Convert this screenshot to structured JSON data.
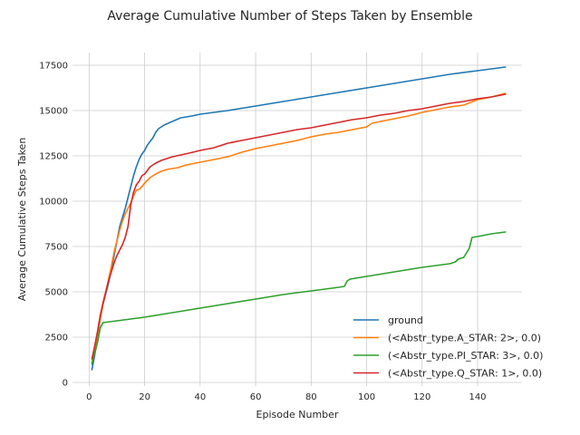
{
  "chart_data": {
    "type": "line",
    "title": "Average Cumulative Number of Steps Taken by Ensemble",
    "xlabel": "Episode Number",
    "ylabel": "Average Cumulative Steps Taken",
    "xlim": [
      -6,
      156
    ],
    "ylim": [
      -200,
      18200
    ],
    "xticks": [
      0,
      20,
      40,
      60,
      80,
      100,
      120,
      140
    ],
    "yticks": [
      0,
      2500,
      5000,
      7500,
      10000,
      12500,
      15000,
      17500
    ],
    "grid": true,
    "legend_position": "lower-right",
    "series": [
      {
        "name": "ground",
        "color": "#1f77b4",
        "points": [
          [
            1,
            700
          ],
          [
            2,
            1500
          ],
          [
            3,
            2500
          ],
          [
            4,
            3500
          ],
          [
            5,
            4300
          ],
          [
            6,
            4900
          ],
          [
            7,
            5500
          ],
          [
            8,
            6200
          ],
          [
            9,
            7000
          ],
          [
            10,
            7800
          ],
          [
            11,
            8600
          ],
          [
            12,
            9100
          ],
          [
            13,
            9600
          ],
          [
            14,
            10200
          ],
          [
            15,
            10800
          ],
          [
            16,
            11400
          ],
          [
            17,
            11900
          ],
          [
            18,
            12300
          ],
          [
            19,
            12600
          ],
          [
            20,
            12800
          ],
          [
            21,
            13100
          ],
          [
            22,
            13300
          ],
          [
            23,
            13500
          ],
          [
            24,
            13800
          ],
          [
            25,
            14000
          ],
          [
            27,
            14200
          ],
          [
            30,
            14400
          ],
          [
            33,
            14600
          ],
          [
            37,
            14700
          ],
          [
            40,
            14800
          ],
          [
            50,
            15000
          ],
          [
            60,
            15250
          ],
          [
            70,
            15500
          ],
          [
            80,
            15750
          ],
          [
            90,
            16000
          ],
          [
            100,
            16250
          ],
          [
            110,
            16500
          ],
          [
            120,
            16750
          ],
          [
            130,
            17000
          ],
          [
            140,
            17200
          ],
          [
            150,
            17400
          ]
        ]
      },
      {
        "name": "(<Abstr_type.A_STAR: 2>, 0.0)",
        "color": "#ff7f0e",
        "points": [
          [
            1,
            1100
          ],
          [
            2,
            1800
          ],
          [
            3,
            2600
          ],
          [
            4,
            3500
          ],
          [
            5,
            4300
          ],
          [
            6,
            5000
          ],
          [
            7,
            5700
          ],
          [
            8,
            6400
          ],
          [
            9,
            7200
          ],
          [
            10,
            7800
          ],
          [
            11,
            8400
          ],
          [
            12,
            8900
          ],
          [
            13,
            9300
          ],
          [
            14,
            9600
          ],
          [
            15,
            9900
          ],
          [
            16,
            10300
          ],
          [
            17,
            10600
          ],
          [
            18,
            10650
          ],
          [
            19,
            10800
          ],
          [
            20,
            11000
          ],
          [
            22,
            11300
          ],
          [
            24,
            11500
          ],
          [
            26,
            11650
          ],
          [
            28,
            11750
          ],
          [
            32,
            11850
          ],
          [
            35,
            12000
          ],
          [
            40,
            12150
          ],
          [
            45,
            12300
          ],
          [
            50,
            12450
          ],
          [
            55,
            12700
          ],
          [
            60,
            12900
          ],
          [
            65,
            13050
          ],
          [
            70,
            13200
          ],
          [
            75,
            13350
          ],
          [
            80,
            13550
          ],
          [
            85,
            13700
          ],
          [
            90,
            13800
          ],
          [
            95,
            13950
          ],
          [
            100,
            14100
          ],
          [
            102,
            14300
          ],
          [
            105,
            14400
          ],
          [
            110,
            14550
          ],
          [
            115,
            14700
          ],
          [
            120,
            14900
          ],
          [
            125,
            15050
          ],
          [
            130,
            15200
          ],
          [
            135,
            15300
          ],
          [
            140,
            15600
          ],
          [
            145,
            15750
          ],
          [
            150,
            15950
          ]
        ]
      },
      {
        "name": "(<Abstr_type.PI_STAR: 3>, 0.0)",
        "color": "#2ca02c",
        "points": [
          [
            1,
            1000
          ],
          [
            2,
            1600
          ],
          [
            3,
            2200
          ],
          [
            4,
            3000
          ],
          [
            5,
            3300
          ],
          [
            10,
            3400
          ],
          [
            20,
            3600
          ],
          [
            30,
            3850
          ],
          [
            40,
            4100
          ],
          [
            50,
            4350
          ],
          [
            60,
            4600
          ],
          [
            70,
            4850
          ],
          [
            80,
            5050
          ],
          [
            90,
            5250
          ],
          [
            92,
            5300
          ],
          [
            93,
            5600
          ],
          [
            94,
            5700
          ],
          [
            100,
            5850
          ],
          [
            110,
            6100
          ],
          [
            120,
            6350
          ],
          [
            130,
            6550
          ],
          [
            132,
            6650
          ],
          [
            133,
            6800
          ],
          [
            135,
            6900
          ],
          [
            137,
            7400
          ],
          [
            138,
            8000
          ],
          [
            140,
            8050
          ],
          [
            145,
            8200
          ],
          [
            150,
            8300
          ]
        ]
      },
      {
        "name": "(<Abstr_type.Q_STAR: 1>, 0.0)",
        "color": "#d62728",
        "points": [
          [
            1,
            1300
          ],
          [
            2,
            2000
          ],
          [
            3,
            2800
          ],
          [
            4,
            3700
          ],
          [
            5,
            4400
          ],
          [
            6,
            5000
          ],
          [
            7,
            5600
          ],
          [
            8,
            6100
          ],
          [
            9,
            6600
          ],
          [
            10,
            7000
          ],
          [
            11,
            7300
          ],
          [
            12,
            7600
          ],
          [
            13,
            8000
          ],
          [
            14,
            8600
          ],
          [
            15,
            9800
          ],
          [
            16,
            10500
          ],
          [
            17,
            10900
          ],
          [
            18,
            11100
          ],
          [
            19,
            11400
          ],
          [
            20,
            11500
          ],
          [
            21,
            11700
          ],
          [
            22,
            11900
          ],
          [
            24,
            12100
          ],
          [
            26,
            12250
          ],
          [
            28,
            12350
          ],
          [
            30,
            12450
          ],
          [
            33,
            12550
          ],
          [
            36,
            12650
          ],
          [
            40,
            12800
          ],
          [
            45,
            12950
          ],
          [
            50,
            13200
          ],
          [
            55,
            13350
          ],
          [
            60,
            13500
          ],
          [
            65,
            13650
          ],
          [
            70,
            13800
          ],
          [
            75,
            13950
          ],
          [
            80,
            14050
          ],
          [
            85,
            14200
          ],
          [
            90,
            14350
          ],
          [
            95,
            14500
          ],
          [
            100,
            14600
          ],
          [
            105,
            14750
          ],
          [
            110,
            14850
          ],
          [
            115,
            15000
          ],
          [
            120,
            15100
          ],
          [
            125,
            15250
          ],
          [
            130,
            15400
          ],
          [
            135,
            15500
          ],
          [
            140,
            15650
          ],
          [
            145,
            15750
          ],
          [
            150,
            15900
          ]
        ]
      }
    ]
  }
}
